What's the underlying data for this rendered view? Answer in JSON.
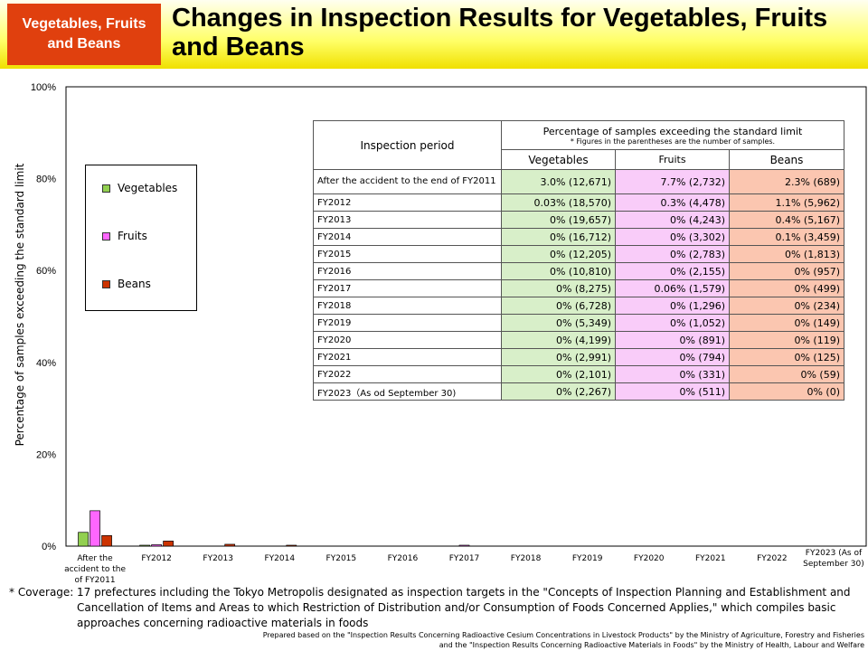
{
  "header": {
    "category": "Vegetables, Fruits and Beans",
    "title": "Changes in Inspection Results for Vegetables, Fruits and Beans"
  },
  "chart_data": {
    "type": "bar",
    "ylabel": "Percentage of samples exceeding the standard limit",
    "ylim": [
      0,
      100
    ],
    "yticks": [
      "0%",
      "20%",
      "40%",
      "60%",
      "80%",
      "100%"
    ],
    "categories": [
      "After the accident to the of FY2011",
      "FY2012",
      "FY2013",
      "FY2014",
      "FY2015",
      "FY2016",
      "FY2017",
      "FY2018",
      "FY2019",
      "FY2020",
      "FY2021",
      "FY2022",
      "FY2023 (As of September 30)"
    ],
    "series": [
      {
        "name": "Vegetables",
        "color": "#92d050",
        "values": [
          3.0,
          0.03,
          0,
          0,
          0,
          0,
          0,
          0,
          0,
          0,
          0,
          0,
          0
        ]
      },
      {
        "name": "Fruits",
        "color": "#ff66ff",
        "values": [
          7.7,
          0.3,
          0,
          0,
          0,
          0,
          0.06,
          0,
          0,
          0,
          0,
          0,
          0
        ]
      },
      {
        "name": "Beans",
        "color": "#cc3300",
        "values": [
          2.3,
          1.1,
          0.4,
          0.1,
          0,
          0,
          0,
          0,
          0,
          0,
          0,
          0,
          0
        ]
      }
    ],
    "legend": "left",
    "grid": false
  },
  "table": {
    "period_header": "Inspection period",
    "group_header": "Percentage of samples exceeding the standard limit",
    "group_note": "* Figures in the parentheses are the number of samples.",
    "columns": [
      "Vegetables",
      "Fruits",
      "Beans"
    ],
    "rows": [
      {
        "period": "After the accident to the end of FY2011",
        "veg": "3.0% (12,671)",
        "fruits": "7.7% (2,732)",
        "beans": "2.3% (689)"
      },
      {
        "period": "FY2012",
        "veg": "0.03% (18,570)",
        "fruits": "0.3% (4,478)",
        "beans": "1.1% (5,962)"
      },
      {
        "period": "FY2013",
        "veg": "0% (19,657)",
        "fruits": "0% (4,243)",
        "beans": "0.4% (5,167)"
      },
      {
        "period": "FY2014",
        "veg": "0% (16,712)",
        "fruits": "0% (3,302)",
        "beans": "0.1% (3,459)"
      },
      {
        "period": "FY2015",
        "veg": "0% (12,205)",
        "fruits": "0% (2,783)",
        "beans": "0% (1,813)"
      },
      {
        "period": "FY2016",
        "veg": "0% (10,810)",
        "fruits": "0% (2,155)",
        "beans": "0% (957)"
      },
      {
        "period": "FY2017",
        "veg": "0% (8,275)",
        "fruits": "0.06% (1,579)",
        "beans": "0% (499)"
      },
      {
        "period": "FY2018",
        "veg": "0% (6,728)",
        "fruits": "0% (1,296)",
        "beans": "0% (234)"
      },
      {
        "period": "FY2019",
        "veg": "0% (5,349)",
        "fruits": "0% (1,052)",
        "beans": "0% (149)"
      },
      {
        "period": "FY2020",
        "veg": "0% (4,199)",
        "fruits": "0% (891)",
        "beans": "0% (119)"
      },
      {
        "period": "FY2021",
        "veg": "0% (2,991)",
        "fruits": "0% (794)",
        "beans": "0% (125)"
      },
      {
        "period": "FY2022",
        "veg": "0% (2,101)",
        "fruits": "0% (331)",
        "beans": "0% (59)"
      },
      {
        "period": "FY2023（As od September 30)",
        "veg": "0% (2,267)",
        "fruits": "0% (511)",
        "beans": "0% (0)"
      }
    ]
  },
  "footnote": {
    "label": "* Coverage:",
    "text": "17 prefectures including the Tokyo Metropolis designated as inspection targets in the \"Concepts of Inspection Planning and Establishment and Cancellation of Items and Areas to which Restriction of Distribution and/or Consumption of Foods Concerned Applies,\" which compiles basic approaches concerning radioactive materials in foods"
  },
  "source": {
    "line1": "Prepared based on the \"Inspection Results Concerning Radioactive Cesium Concentrations in Livestock Products\" by the Ministry of Agriculture, Forestry and Fisheries",
    "line2": "and the \"Inspection Results Concerning Radioactive Materials in Foods\" by the Ministry of Health, Labour and Welfare"
  }
}
